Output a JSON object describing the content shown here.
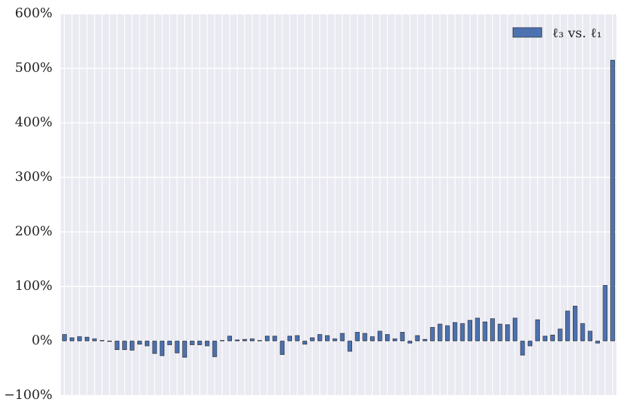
{
  "chart_data": {
    "type": "bar",
    "categories": [
      null,
      null,
      null,
      null,
      null,
      null,
      null,
      null,
      null,
      null,
      null,
      null,
      null,
      null,
      null,
      null,
      null,
      null,
      null,
      null,
      null,
      null,
      null,
      null,
      null,
      null,
      null,
      null,
      null,
      null,
      null,
      null,
      null,
      null,
      null,
      null,
      null,
      null,
      null,
      null,
      null,
      null,
      null,
      null,
      null,
      null,
      null,
      null,
      null,
      null,
      null,
      null,
      null,
      null,
      null,
      null,
      null,
      null,
      null,
      null,
      null,
      null,
      null,
      null,
      null,
      null,
      null,
      null,
      null,
      null,
      null,
      null,
      null,
      null
    ],
    "series": [
      {
        "name": "ℓ₃ vs. ℓ₁",
        "color": "#4c72b0",
        "values": [
          12,
          6,
          8,
          7,
          4,
          1,
          -1,
          -16,
          -16,
          -17,
          -6,
          -9,
          -23,
          -27,
          -7,
          -22,
          -30,
          -7,
          -7,
          -9,
          -29,
          1,
          9,
          2,
          3,
          4,
          1,
          9,
          9,
          -25,
          9,
          10,
          -6,
          6,
          12,
          10,
          4,
          14,
          -19,
          16,
          14,
          8,
          18,
          12,
          4,
          16,
          -4,
          10,
          3,
          25,
          31,
          28,
          34,
          32,
          38,
          42,
          35,
          41,
          31,
          30,
          42,
          -26,
          -9,
          39,
          9,
          11,
          22,
          55,
          64,
          32,
          18,
          -4,
          102,
          515
        ]
      }
    ],
    "ylim": [
      -100,
      600
    ],
    "yticks": [
      {
        "value": -100,
        "label": "−100%"
      },
      {
        "value": 0,
        "label": "0%"
      },
      {
        "value": 100,
        "label": "100%"
      },
      {
        "value": 200,
        "label": "200%"
      },
      {
        "value": 300,
        "label": "300%"
      },
      {
        "value": 400,
        "label": "400%"
      },
      {
        "value": 500,
        "label": "500%"
      },
      {
        "value": 600,
        "label": "600%"
      }
    ],
    "grid": true,
    "legend": "upper right"
  }
}
